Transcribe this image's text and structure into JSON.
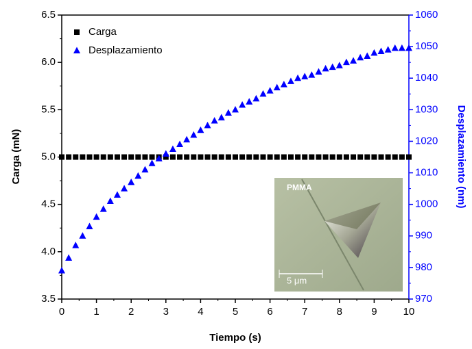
{
  "chart_data": {
    "type": "scatter",
    "xlabel": "Tiempo (s)",
    "ylabel": "Carga (mN)",
    "y2label": "Desplazamiento (nm)",
    "x": [
      0,
      0.2,
      0.4,
      0.6,
      0.8,
      1,
      1.2,
      1.4,
      1.6,
      1.8,
      2,
      2.2,
      2.4,
      2.6,
      2.8,
      3,
      3.2,
      3.4,
      3.6,
      3.8,
      4,
      4.2,
      4.4,
      4.6,
      4.8,
      5,
      5.2,
      5.4,
      5.6,
      5.8,
      6,
      6.2,
      6.4,
      6.6,
      6.8,
      7,
      7.2,
      7.4,
      7.6,
      7.8,
      8,
      8.2,
      8.4,
      8.6,
      8.8,
      9,
      9.2,
      9.4,
      9.6,
      9.8,
      10
    ],
    "series": [
      {
        "name": "Carga",
        "color": "#000000",
        "marker": "square",
        "values": [
          5,
          5,
          5,
          5,
          5,
          5,
          5,
          5,
          5,
          5,
          5,
          5,
          5,
          5,
          5,
          5,
          5,
          5,
          5,
          5,
          5,
          5,
          5,
          5,
          5,
          5,
          5,
          5,
          5,
          5,
          5,
          5,
          5,
          5,
          5,
          5,
          5,
          5,
          5,
          5,
          5,
          5,
          5,
          5,
          5,
          5,
          5,
          5,
          5,
          5,
          5
        ]
      },
      {
        "name": "Desplazamiento",
        "color": "#0000ff",
        "marker": "triangle",
        "axis": "y2",
        "values": [
          979,
          983,
          987,
          990,
          993,
          996,
          998.5,
          1001,
          1003,
          1005,
          1007,
          1009,
          1011,
          1013,
          1014.5,
          1016,
          1017.5,
          1019,
          1020.5,
          1022,
          1023.5,
          1025,
          1026.5,
          1027.5,
          1029,
          1030,
          1031.5,
          1032.5,
          1033.5,
          1035,
          1036,
          1037,
          1038,
          1039,
          1040,
          1040.5,
          1041,
          1042,
          1043,
          1043.5,
          1044,
          1045,
          1045.5,
          1046.5,
          1047,
          1048,
          1048.5,
          1049,
          1049.5,
          1049.5,
          1049.5
        ]
      }
    ],
    "xlim": [
      0,
      10
    ],
    "xticks": [
      0,
      1,
      2,
      3,
      4,
      5,
      6,
      7,
      8,
      9,
      10
    ],
    "ylim": [
      3.5,
      6.5
    ],
    "yticks": [
      3.5,
      {
        "value": 4,
        "label": "4.0"
      },
      4.5,
      {
        "value": 5,
        "label": "5.0"
      },
      5.5,
      {
        "value": 6,
        "label": "6.0"
      },
      6.5
    ],
    "y2lim": [
      970,
      1060
    ],
    "y2ticks": [
      970,
      980,
      990,
      1000,
      1010,
      1020,
      1030,
      1040,
      1050,
      1060
    ],
    "y2color": "#0000ff",
    "legend": "upper-left",
    "inset": {
      "label": "PMMA",
      "scale": "5 μm"
    }
  }
}
